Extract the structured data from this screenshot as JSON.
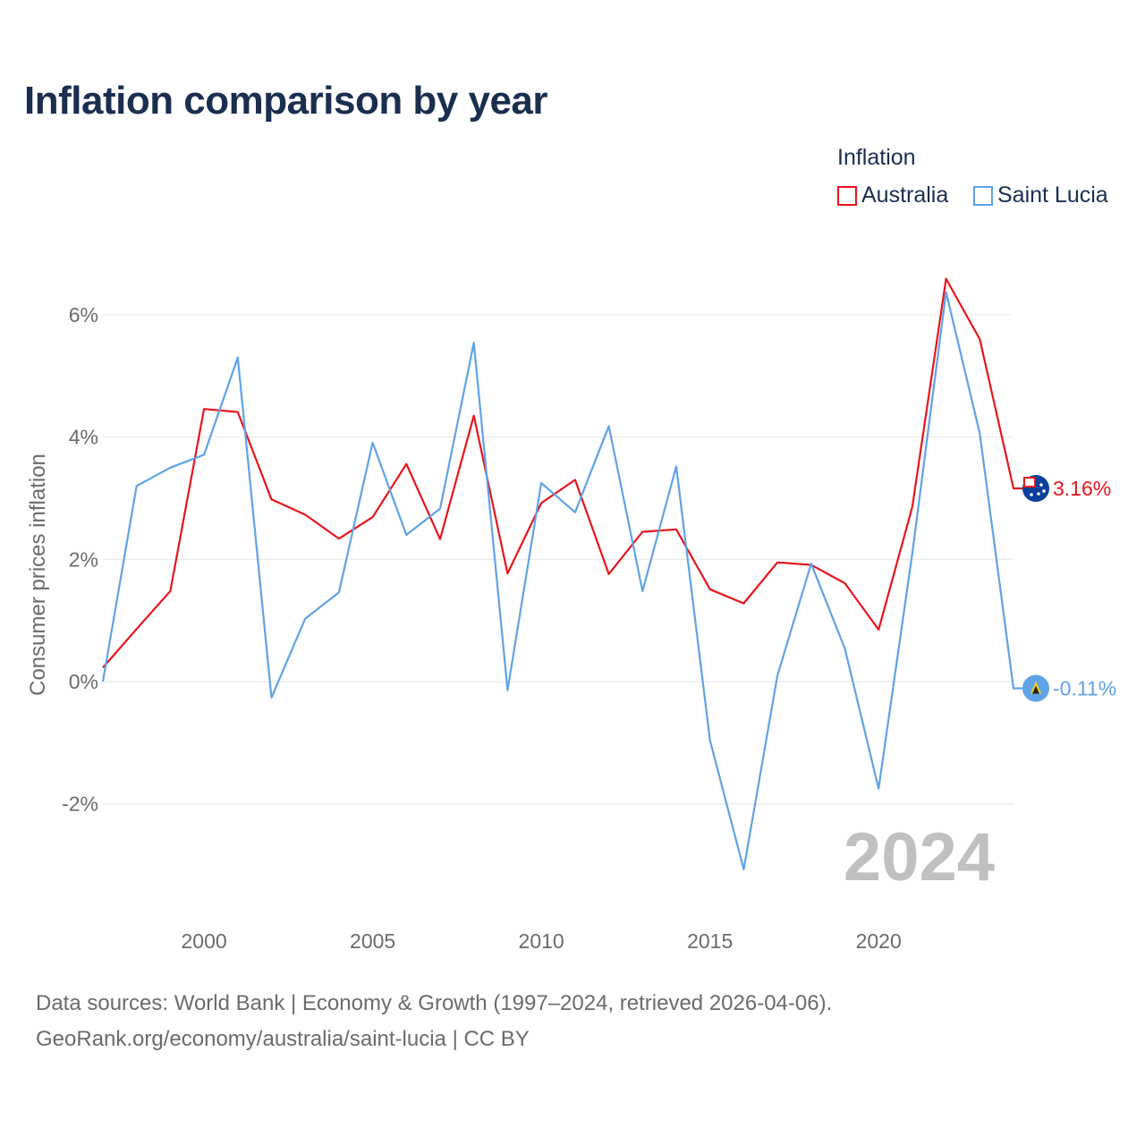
{
  "title": "Inflation comparison by year",
  "legend": {
    "title": "Inflation",
    "items": [
      {
        "label": "Australia",
        "color": "#e8141c"
      },
      {
        "label": "Saint Lucia",
        "color": "#5fa3e6"
      }
    ]
  },
  "year_watermark": "2024",
  "source": {
    "line1": "Data sources: World Bank | Economy & Growth (1997–2024, retrieved 2026-04-06).",
    "line2": "GeoRank.org/economy/australia/saint-lucia | CC BY"
  },
  "chart_data": {
    "type": "line",
    "ylabel": "Consumer prices inflation",
    "xlabel": "",
    "xlim": [
      1997,
      2024
    ],
    "ylim": [
      -3.6,
      7
    ],
    "x_ticks": [
      2000,
      2005,
      2010,
      2015,
      2020
    ],
    "x_tick_labels": [
      "2000",
      "2005",
      "2010",
      "2015",
      "2020"
    ],
    "y_ticks": [
      -2,
      0,
      2,
      4,
      6
    ],
    "y_tick_labels": [
      "-2%",
      "0%",
      "2%",
      "4%",
      "6%"
    ],
    "grid": true,
    "x": [
      1997,
      1998,
      1999,
      2000,
      2001,
      2002,
      2003,
      2004,
      2005,
      2006,
      2007,
      2008,
      2009,
      2010,
      2011,
      2012,
      2013,
      2014,
      2015,
      2016,
      2017,
      2018,
      2019,
      2020,
      2021,
      2022,
      2023,
      2024
    ],
    "series": [
      {
        "name": "Australia",
        "color": "#e8141c",
        "end_label": "3.16%",
        "values": [
          0.23,
          0.86,
          1.48,
          4.46,
          4.41,
          2.98,
          2.73,
          2.34,
          2.69,
          3.56,
          2.33,
          4.35,
          1.77,
          2.92,
          3.3,
          1.76,
          2.45,
          2.49,
          1.51,
          1.28,
          1.95,
          1.91,
          1.61,
          0.85,
          2.86,
          6.59,
          5.6,
          3.16
        ]
      },
      {
        "name": "Saint Lucia",
        "color": "#5fa3e6",
        "end_label": "-0.11%",
        "values": [
          0.0,
          3.2,
          3.5,
          3.71,
          5.3,
          -0.26,
          1.03,
          1.46,
          3.91,
          2.4,
          2.83,
          5.54,
          -0.14,
          3.25,
          2.77,
          4.18,
          1.48,
          3.52,
          -0.96,
          -3.07,
          0.1,
          1.93,
          0.54,
          -1.75,
          2.1,
          6.37,
          4.06,
          -0.11
        ]
      }
    ]
  }
}
